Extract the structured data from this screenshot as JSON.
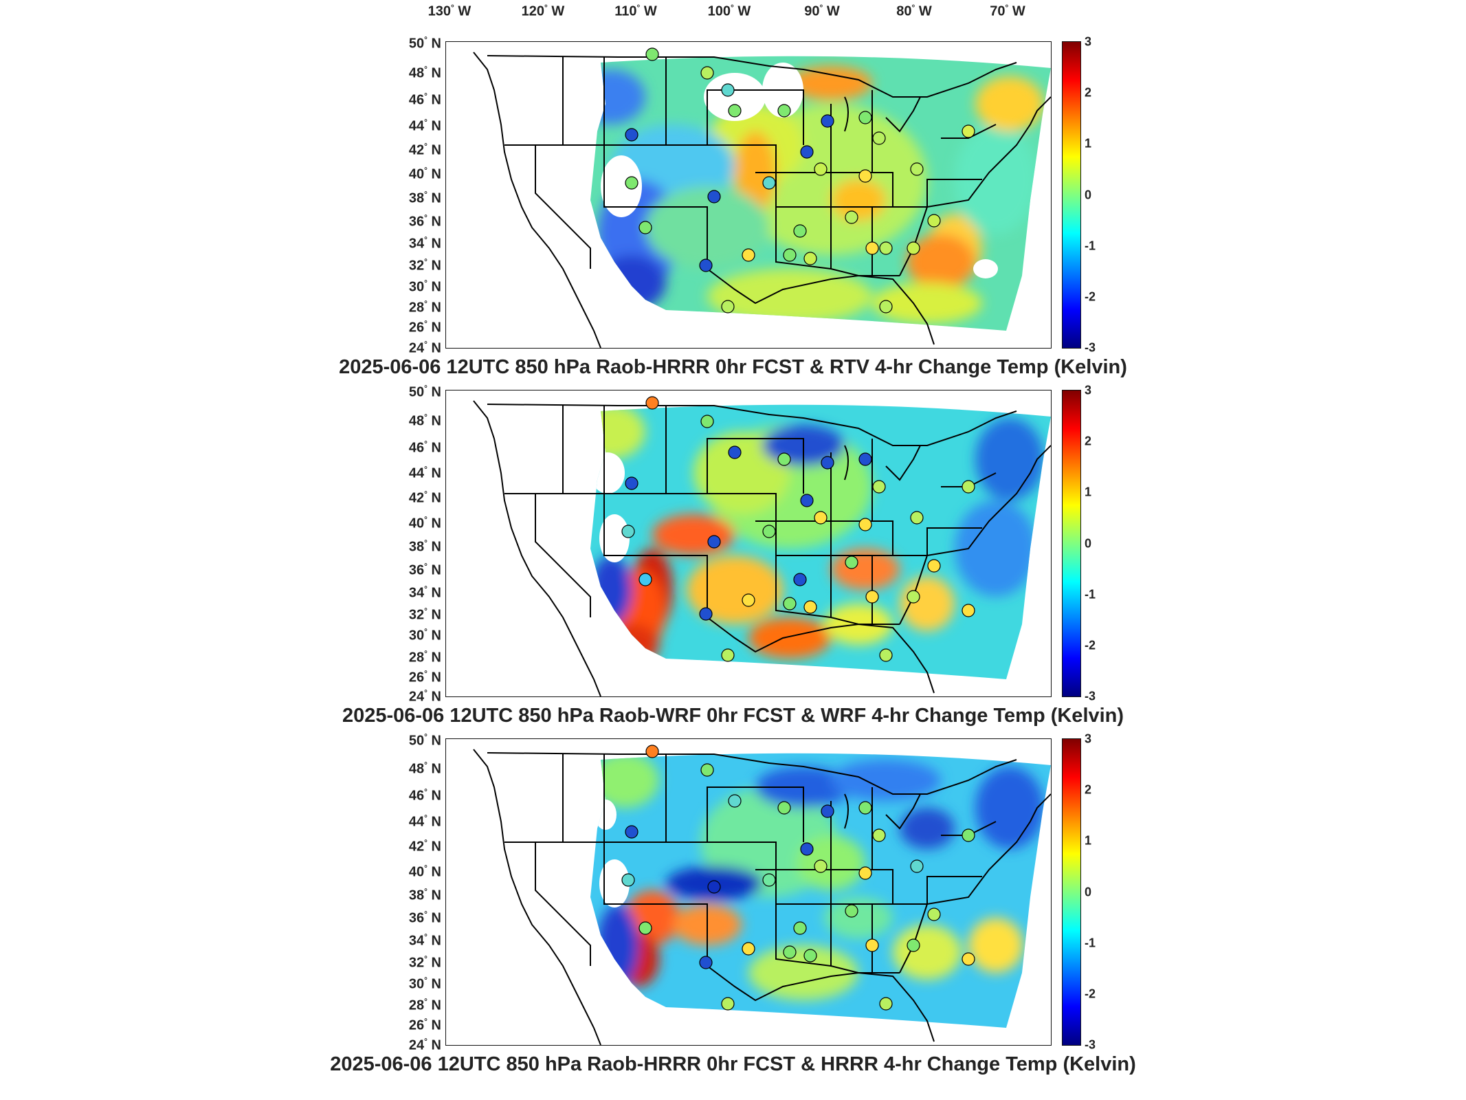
{
  "longitude_labels": [
    "130",
    "120",
    "110",
    "100",
    "90",
    "80",
    "70"
  ],
  "longitude_hemisphere": "W",
  "latitude_labels": [
    "50",
    "48",
    "46",
    "44",
    "42",
    "40",
    "38",
    "36",
    "34",
    "32",
    "30",
    "28",
    "26",
    "24"
  ],
  "latitude_hemisphere": "N",
  "degree_symbol": "°",
  "colorbar": {
    "ticks": [
      "3",
      "2",
      "1",
      "0",
      "-1",
      "-2",
      "-3"
    ],
    "range": [
      -3,
      3
    ],
    "colormap": "jet",
    "colors": [
      "#800000",
      "#ff0000",
      "#ff8000",
      "#ffff00",
      "#80ff80",
      "#00ffff",
      "#0080ff",
      "#0000ff",
      "#000080"
    ]
  },
  "panels": [
    {
      "title": "2025-06-06 12UTC 850 hPa Raob-HRRR 0hr FCST & RTV 4-hr Change Temp (Kelvin)"
    },
    {
      "title": "2025-06-06 12UTC 850 hPa Raob-WRF 0hr FCST & WRF 4-hr Change Temp (Kelvin)"
    },
    {
      "title": "2025-06-06 12UTC 850 hPa Raob-HRRR 0hr FCST & HRRR 4-hr Change Temp (Kelvin)"
    }
  ]
}
